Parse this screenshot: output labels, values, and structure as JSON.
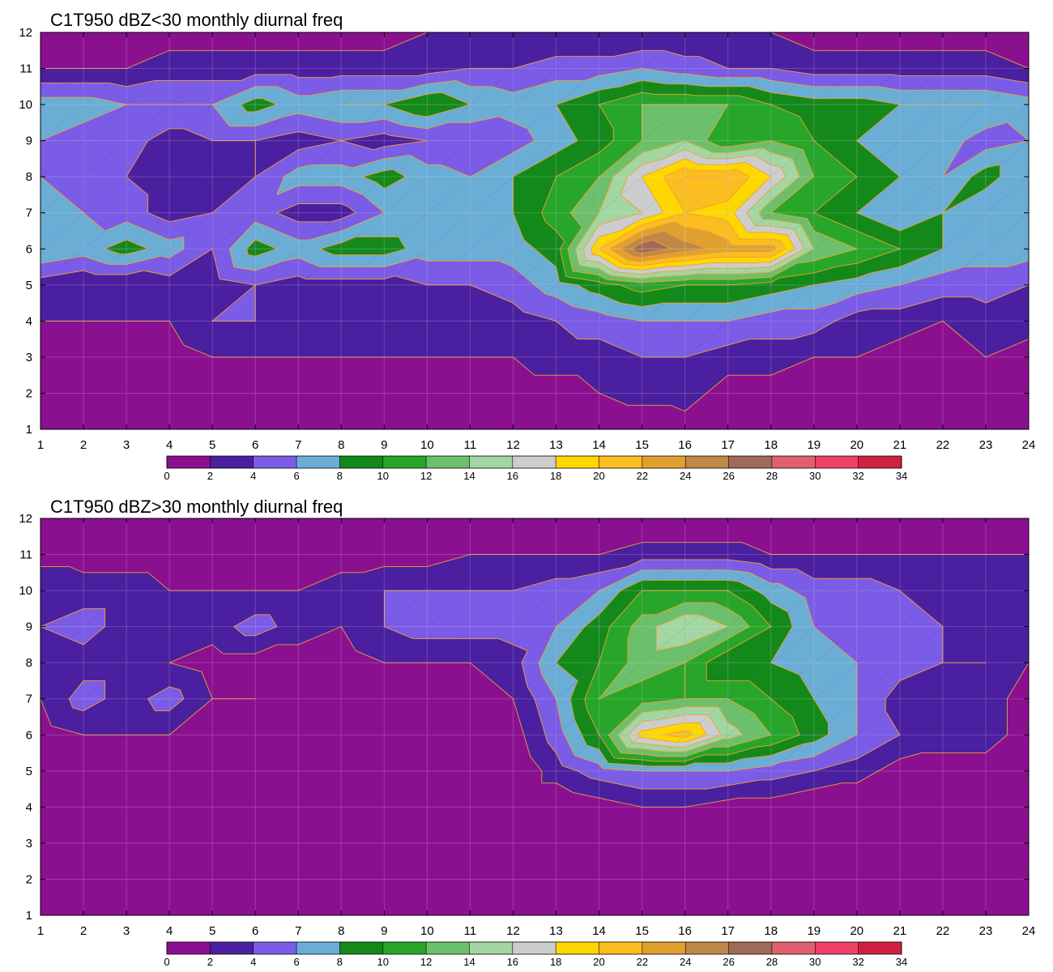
{
  "chart_data": [
    {
      "type": "heatmap",
      "title": "C1T950 dBZ<30 monthly diurnal freq",
      "xlabel": "",
      "ylabel": "",
      "x": [
        1,
        2,
        3,
        4,
        5,
        6,
        7,
        8,
        9,
        10,
        11,
        12,
        13,
        14,
        15,
        16,
        17,
        18,
        19,
        20,
        21,
        22,
        23,
        24
      ],
      "y": [
        1,
        2,
        3,
        4,
        5,
        6,
        7,
        8,
        9,
        10,
        11,
        12
      ],
      "xlim": [
        1,
        24
      ],
      "ylim": [
        1,
        12
      ],
      "grid": true,
      "colorbar": {
        "levels": [
          0,
          2,
          4,
          6,
          8,
          10,
          12,
          14,
          16,
          18,
          20,
          22,
          24,
          26,
          28,
          30,
          32,
          34
        ],
        "colors": [
          "#8b1090",
          "#4a20a0",
          "#7b5ce6",
          "#6aaed6",
          "#13891a",
          "#27a62a",
          "#6cc06c",
          "#a2d6a2",
          "#cdcdcd",
          "#ffd700",
          "#fbbd20",
          "#e0a030",
          "#c08848",
          "#a06a58",
          "#e06070",
          "#f04068",
          "#d02040"
        ],
        "placement": "bottom"
      },
      "z": [
        [
          0,
          0,
          0,
          0,
          0,
          0,
          0,
          0,
          0,
          0,
          0,
          0,
          0,
          0,
          0,
          1,
          0,
          0,
          0,
          0,
          0,
          0,
          0,
          0
        ],
        [
          0,
          0,
          0,
          0,
          1,
          1,
          1,
          1,
          1,
          1,
          1,
          1,
          1,
          2,
          3,
          3,
          1,
          1,
          1,
          1,
          0,
          0,
          0,
          0
        ],
        [
          1,
          1,
          1,
          1,
          2,
          2,
          2,
          2,
          2,
          2,
          2,
          2,
          3,
          3,
          4,
          4,
          3,
          3,
          2,
          2,
          1,
          1,
          2,
          1
        ],
        [
          2,
          2,
          2,
          2,
          4,
          4,
          3,
          3,
          3,
          3,
          2,
          3,
          4,
          5,
          6,
          6,
          6,
          5,
          5,
          3,
          3,
          2,
          3,
          3
        ],
        [
          3,
          2,
          2,
          3,
          3,
          4,
          3,
          3,
          3,
          4,
          4,
          5,
          7,
          9,
          11,
          10,
          10,
          9,
          8,
          7,
          6,
          5,
          5,
          4
        ],
        [
          8,
          7,
          9,
          7,
          4,
          9,
          7,
          9,
          9,
          7,
          7,
          7,
          9,
          20,
          28,
          25,
          23,
          23,
          14,
          12,
          10,
          8,
          7,
          7
        ],
        [
          7,
          6,
          5,
          3,
          4,
          5,
          3,
          3,
          6,
          6,
          6,
          8,
          11,
          14,
          16,
          20,
          19,
          12,
          10,
          8,
          6,
          8,
          6,
          6
        ],
        [
          6,
          5,
          4,
          3,
          3,
          4,
          7,
          7,
          9,
          7,
          6,
          8,
          10,
          12,
          18,
          22,
          22,
          18,
          12,
          10,
          8,
          6,
          9,
          6
        ],
        [
          6,
          5,
          5,
          3,
          4,
          4,
          3,
          4,
          3,
          4,
          4,
          5,
          7,
          9,
          12,
          14,
          10,
          12,
          10,
          8,
          6,
          7,
          5,
          6
        ],
        [
          7,
          7,
          6,
          6,
          6,
          9,
          7,
          8,
          8,
          10,
          8,
          7,
          8,
          10,
          12,
          12,
          12,
          10,
          9,
          9,
          8,
          8,
          8,
          7
        ],
        [
          2,
          2,
          2,
          3,
          3,
          3,
          3,
          3,
          3,
          3,
          4,
          4,
          5,
          5,
          6,
          5,
          4,
          4,
          3,
          3,
          3,
          3,
          3,
          2
        ],
        [
          0,
          1,
          1,
          1,
          1,
          1,
          1,
          1,
          1,
          2,
          2,
          2,
          2,
          2,
          2,
          2,
          2,
          2,
          1,
          1,
          1,
          1,
          1,
          0
        ]
      ]
    },
    {
      "type": "heatmap",
      "title": "C1T950 dBZ>30 monthly diurnal freq",
      "xlabel": "",
      "ylabel": "",
      "x": [
        1,
        2,
        3,
        4,
        5,
        6,
        7,
        8,
        9,
        10,
        11,
        12,
        13,
        14,
        15,
        16,
        17,
        18,
        19,
        20,
        21,
        22,
        23,
        24
      ],
      "y": [
        1,
        2,
        3,
        4,
        5,
        6,
        7,
        8,
        9,
        10,
        11,
        12
      ],
      "xlim": [
        1,
        24
      ],
      "ylim": [
        1,
        12
      ],
      "grid": true,
      "colorbar": {
        "levels": [
          0,
          2,
          4,
          6,
          8,
          10,
          12,
          14,
          16,
          18,
          20,
          22,
          24,
          26,
          28,
          30,
          32,
          34
        ],
        "colors": [
          "#8b1090",
          "#4a20a0",
          "#7b5ce6",
          "#6aaed6",
          "#13891a",
          "#27a62a",
          "#6cc06c",
          "#a2d6a2",
          "#cdcdcd",
          "#ffd700",
          "#fbbd20",
          "#e0a030",
          "#c08848",
          "#a06a58",
          "#e06070",
          "#f04068",
          "#d02040"
        ],
        "placement": "bottom"
      },
      "z": [
        [
          0,
          0,
          0,
          0,
          0,
          0,
          0,
          0,
          0,
          0,
          0,
          0,
          0,
          0,
          0,
          0,
          0,
          0,
          0,
          0,
          0,
          0,
          0,
          0
        ],
        [
          0,
          0,
          0,
          0,
          0,
          0,
          0,
          0,
          0,
          0,
          0,
          0,
          0,
          0,
          0,
          0,
          0,
          0,
          0,
          0,
          0,
          0,
          0,
          0
        ],
        [
          0,
          0,
          0,
          0,
          0,
          0,
          0,
          0,
          0,
          0,
          0,
          0,
          0,
          0,
          0,
          0,
          0,
          0,
          0,
          0,
          0,
          0,
          0,
          0
        ],
        [
          0,
          0,
          0,
          0,
          0,
          0,
          0,
          0,
          0,
          0,
          0,
          0,
          0,
          1,
          2,
          2,
          1,
          1,
          0,
          0,
          0,
          0,
          0,
          0
        ],
        [
          0,
          0,
          0,
          0,
          0,
          0,
          0,
          0,
          0,
          0,
          0,
          0,
          3,
          5,
          6,
          6,
          6,
          5,
          4,
          3,
          1,
          1,
          1,
          0
        ],
        [
          1,
          2,
          2,
          2,
          1,
          1,
          1,
          0,
          1,
          1,
          1,
          1,
          5,
          10,
          19,
          21,
          15,
          12,
          9,
          6,
          4,
          3,
          3,
          1
        ],
        [
          2,
          5,
          3,
          5,
          2,
          2,
          1,
          0,
          1,
          1,
          1,
          2,
          6,
          12,
          11,
          12,
          12,
          10,
          8,
          6,
          3,
          3,
          3,
          1
        ],
        [
          2,
          3,
          3,
          2,
          1,
          1,
          1,
          1,
          2,
          2,
          2,
          3,
          8,
          10,
          13,
          12,
          8,
          8,
          7,
          6,
          5,
          4,
          4,
          2
        ],
        [
          4,
          5,
          3,
          2,
          3,
          5,
          3,
          2,
          4,
          5,
          5,
          5,
          6,
          9,
          13,
          16,
          14,
          10,
          6,
          5,
          5,
          4,
          3,
          3
        ],
        [
          4,
          3,
          3,
          2,
          2,
          2,
          2,
          3,
          4,
          4,
          4,
          4,
          5,
          6,
          10,
          10,
          10,
          7,
          5,
          5,
          4,
          3,
          3,
          3
        ],
        [
          1,
          1,
          1,
          1,
          1,
          1,
          1,
          1,
          1,
          1,
          2,
          2,
          2,
          2,
          3,
          3,
          3,
          2,
          2,
          2,
          2,
          2,
          2,
          2
        ],
        [
          0,
          0,
          0,
          0,
          0,
          0,
          0,
          0,
          0,
          0,
          0,
          0,
          0,
          0,
          0,
          0,
          0,
          0,
          0,
          0,
          0,
          0,
          0,
          0
        ]
      ]
    }
  ]
}
